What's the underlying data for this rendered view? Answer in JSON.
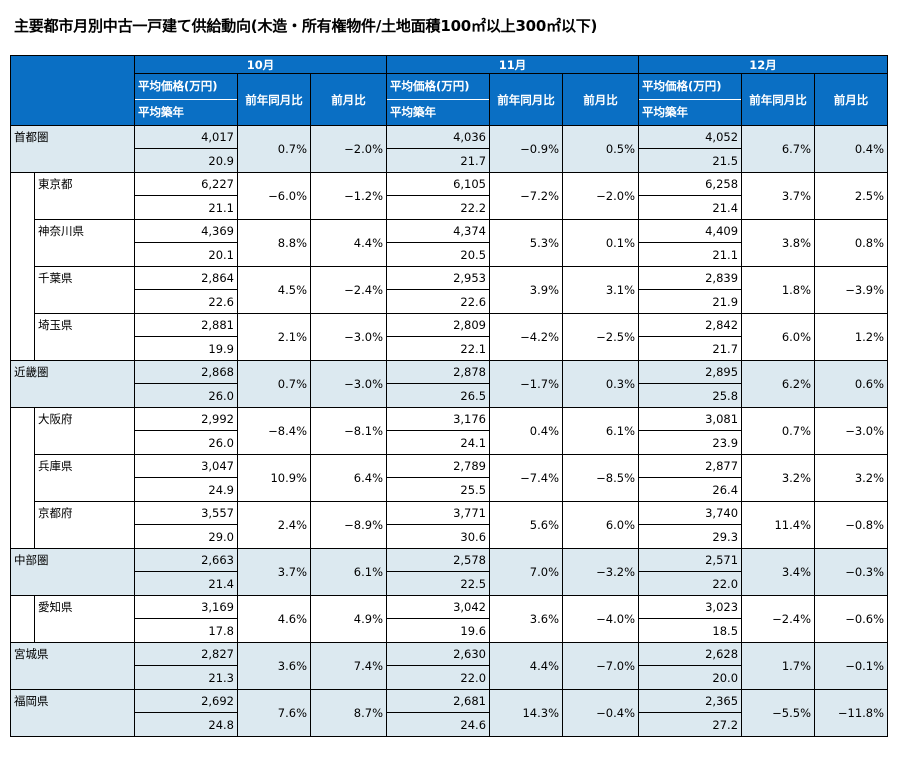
{
  "title": "主要都市月別中古一戸建て供給動向(木造・所有権物件/土地面積100㎡以上300㎡以下)",
  "months": [
    "10月",
    "11月",
    "12月"
  ],
  "sub_headers": {
    "price": "平均価格(万円)",
    "age": "平均築年",
    "yoy": "前年同月比",
    "mom": "前月比"
  },
  "rows": [
    {
      "name": "首都圏",
      "level": 0,
      "data": [
        {
          "price": "4,017",
          "age": "20.9",
          "yoy": "0.7%",
          "mom": "−2.0%"
        },
        {
          "price": "4,036",
          "age": "21.7",
          "yoy": "−0.9%",
          "mom": "0.5%"
        },
        {
          "price": "4,052",
          "age": "21.5",
          "yoy": "6.7%",
          "mom": "0.4%"
        }
      ]
    },
    {
      "name": "東京都",
      "level": 1,
      "data": [
        {
          "price": "6,227",
          "age": "21.1",
          "yoy": "−6.0%",
          "mom": "−1.2%"
        },
        {
          "price": "6,105",
          "age": "22.2",
          "yoy": "−7.2%",
          "mom": "−2.0%"
        },
        {
          "price": "6,258",
          "age": "21.4",
          "yoy": "3.7%",
          "mom": "2.5%"
        }
      ]
    },
    {
      "name": "神奈川県",
      "level": 1,
      "data": [
        {
          "price": "4,369",
          "age": "20.1",
          "yoy": "8.8%",
          "mom": "4.4%"
        },
        {
          "price": "4,374",
          "age": "20.5",
          "yoy": "5.3%",
          "mom": "0.1%"
        },
        {
          "price": "4,409",
          "age": "21.1",
          "yoy": "3.8%",
          "mom": "0.8%"
        }
      ]
    },
    {
      "name": "千葉県",
      "level": 1,
      "data": [
        {
          "price": "2,864",
          "age": "22.6",
          "yoy": "4.5%",
          "mom": "−2.4%"
        },
        {
          "price": "2,953",
          "age": "22.6",
          "yoy": "3.9%",
          "mom": "3.1%"
        },
        {
          "price": "2,839",
          "age": "21.9",
          "yoy": "1.8%",
          "mom": "−3.9%"
        }
      ]
    },
    {
      "name": "埼玉県",
      "level": 1,
      "data": [
        {
          "price": "2,881",
          "age": "19.9",
          "yoy": "2.1%",
          "mom": "−3.0%"
        },
        {
          "price": "2,809",
          "age": "22.1",
          "yoy": "−4.2%",
          "mom": "−2.5%"
        },
        {
          "price": "2,842",
          "age": "21.7",
          "yoy": "6.0%",
          "mom": "1.2%"
        }
      ]
    },
    {
      "name": "近畿圏",
      "level": 0,
      "data": [
        {
          "price": "2,868",
          "age": "26.0",
          "yoy": "0.7%",
          "mom": "−3.0%"
        },
        {
          "price": "2,878",
          "age": "26.5",
          "yoy": "−1.7%",
          "mom": "0.3%"
        },
        {
          "price": "2,895",
          "age": "25.8",
          "yoy": "6.2%",
          "mom": "0.6%"
        }
      ]
    },
    {
      "name": "大阪府",
      "level": 1,
      "data": [
        {
          "price": "2,992",
          "age": "26.0",
          "yoy": "−8.4%",
          "mom": "−8.1%"
        },
        {
          "price": "3,176",
          "age": "24.1",
          "yoy": "0.4%",
          "mom": "6.1%"
        },
        {
          "price": "3,081",
          "age": "23.9",
          "yoy": "0.7%",
          "mom": "−3.0%"
        }
      ]
    },
    {
      "name": "兵庫県",
      "level": 1,
      "data": [
        {
          "price": "3,047",
          "age": "24.9",
          "yoy": "10.9%",
          "mom": "6.4%"
        },
        {
          "price": "2,789",
          "age": "25.5",
          "yoy": "−7.4%",
          "mom": "−8.5%"
        },
        {
          "price": "2,877",
          "age": "26.4",
          "yoy": "3.2%",
          "mom": "3.2%"
        }
      ]
    },
    {
      "name": "京都府",
      "level": 1,
      "data": [
        {
          "price": "3,557",
          "age": "29.0",
          "yoy": "2.4%",
          "mom": "−8.9%"
        },
        {
          "price": "3,771",
          "age": "30.6",
          "yoy": "5.6%",
          "mom": "6.0%"
        },
        {
          "price": "3,740",
          "age": "29.3",
          "yoy": "11.4%",
          "mom": "−0.8%"
        }
      ]
    },
    {
      "name": "中部圏",
      "level": 0,
      "data": [
        {
          "price": "2,663",
          "age": "21.4",
          "yoy": "3.7%",
          "mom": "6.1%"
        },
        {
          "price": "2,578",
          "age": "22.5",
          "yoy": "7.0%",
          "mom": "−3.2%"
        },
        {
          "price": "2,571",
          "age": "22.0",
          "yoy": "3.4%",
          "mom": "−0.3%"
        }
      ]
    },
    {
      "name": "愛知県",
      "level": 1,
      "data": [
        {
          "price": "3,169",
          "age": "17.8",
          "yoy": "4.6%",
          "mom": "4.9%"
        },
        {
          "price": "3,042",
          "age": "19.6",
          "yoy": "3.6%",
          "mom": "−4.0%"
        },
        {
          "price": "3,023",
          "age": "18.5",
          "yoy": "−2.4%",
          "mom": "−0.6%"
        }
      ]
    },
    {
      "name": "宮城県",
      "level": 0,
      "data": [
        {
          "price": "2,827",
          "age": "21.3",
          "yoy": "3.6%",
          "mom": "7.4%"
        },
        {
          "price": "2,630",
          "age": "22.0",
          "yoy": "4.4%",
          "mom": "−7.0%"
        },
        {
          "price": "2,628",
          "age": "20.0",
          "yoy": "1.7%",
          "mom": "−0.1%"
        }
      ]
    },
    {
      "name": "福岡県",
      "level": 0,
      "data": [
        {
          "price": "2,692",
          "age": "24.8",
          "yoy": "7.6%",
          "mom": "8.7%"
        },
        {
          "price": "2,681",
          "age": "24.6",
          "yoy": "14.3%",
          "mom": "−0.4%"
        },
        {
          "price": "2,365",
          "age": "27.2",
          "yoy": "−5.5%",
          "mom": "−11.8%"
        }
      ]
    }
  ],
  "colors": {
    "header": "#0a6fc4",
    "region_row": "#dce9f0",
    "prefecture_row": "#ffffff"
  }
}
